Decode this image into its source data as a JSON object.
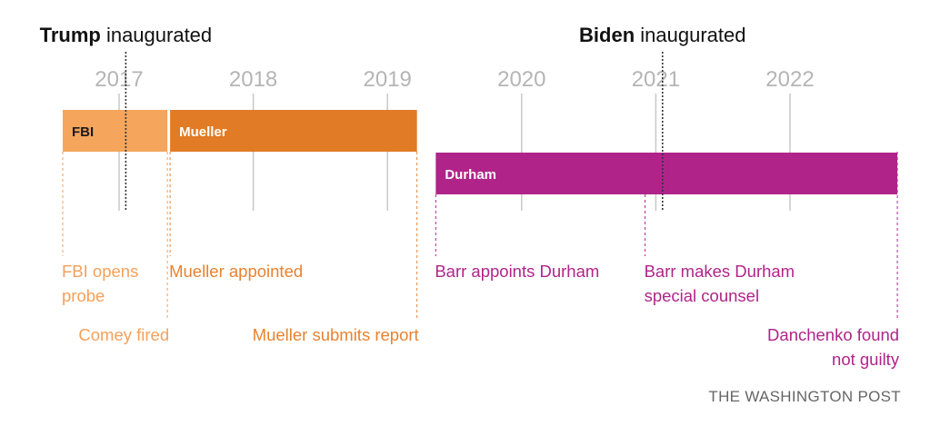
{
  "chart_data": {
    "type": "timeline",
    "x_unit": "year",
    "xlim": [
      2016.5,
      2022.85
    ],
    "year_ticks": [
      "2017",
      "2018",
      "2019",
      "2020",
      "2021",
      "2022"
    ],
    "markers": [
      {
        "bold": "Trump",
        "rest": " inaugurated",
        "date": 2017.05
      },
      {
        "bold": "Biden",
        "rest": " inaugurated",
        "date": 2021.05
      }
    ],
    "bars": [
      {
        "label": "FBI",
        "start": 2016.58,
        "end": 2017.36,
        "row": 0,
        "color": "#f5a55c",
        "text_color": "#1a1a1a"
      },
      {
        "label": "Mueller",
        "start": 2017.38,
        "end": 2019.22,
        "row": 0,
        "color": "#e17b25",
        "text_color": "#ffffff"
      },
      {
        "label": "Durham",
        "start": 2019.36,
        "end": 2022.8,
        "row": 1,
        "color": "#b0248a",
        "text_color": "#ffffff"
      }
    ],
    "events": [
      {
        "lines": [
          "FBI opens",
          "probe"
        ],
        "date": 2016.58,
        "level": 0,
        "align": "start",
        "color": "#f5a05a"
      },
      {
        "lines": [
          "Comey fired"
        ],
        "date": 2017.36,
        "level": 1,
        "align": "end",
        "color": "#f5a05a"
      },
      {
        "lines": [
          "Mueller appointed"
        ],
        "date": 2017.38,
        "level": 0,
        "align": "start",
        "color": "#e8822f"
      },
      {
        "lines": [
          "Mueller submits report"
        ],
        "date": 2019.22,
        "level": 1,
        "align": "end",
        "color": "#e8822f"
      },
      {
        "lines": [
          "Barr appoints Durham"
        ],
        "date": 2019.36,
        "level": 0,
        "align": "start",
        "color": "#b0248a"
      },
      {
        "lines": [
          "Barr makes Durham",
          "special counsel"
        ],
        "date": 2020.92,
        "level": 0,
        "align": "start",
        "color": "#b0248a"
      },
      {
        "lines": [
          "Danchenko found",
          "not guilty"
        ],
        "date": 2022.8,
        "level": 1,
        "align": "end",
        "color": "#b0248a"
      }
    ],
    "source": "THE WASHINGTON POST"
  }
}
